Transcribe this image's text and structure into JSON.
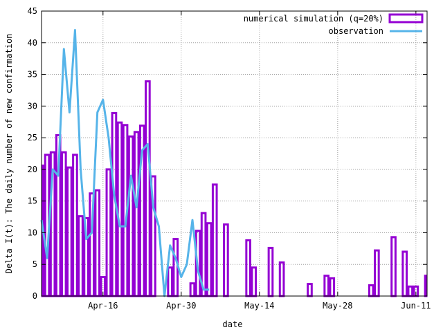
{
  "chart_data": {
    "type": "bar",
    "xlabel": "date",
    "ylabel": "Delta I(t): The daily number of new confirmation",
    "ylim": [
      0,
      45
    ],
    "y_ticks": [
      0,
      5,
      10,
      15,
      20,
      25,
      30,
      35,
      40,
      45
    ],
    "x_tick_labels": [
      "Apr-16",
      "Apr-30",
      "May-14",
      "May-28",
      "Jun-11"
    ],
    "x_tick_positions": [
      11,
      25,
      39,
      53,
      67
    ],
    "xlim": [
      0,
      69
    ],
    "grid": true,
    "legend_position": "top-right",
    "series": [
      {
        "name": "numerical simulation (q=20%)",
        "kind": "bar",
        "color": "#9400d3",
        "x": [
          0,
          1,
          2,
          3,
          4,
          5,
          6,
          7,
          8,
          9,
          10,
          11,
          12,
          13,
          14,
          15,
          16,
          17,
          18,
          19,
          20,
          21,
          22,
          23,
          24,
          25,
          26,
          27,
          28,
          29,
          30,
          31,
          32,
          33,
          34,
          35,
          36,
          37,
          38,
          39,
          40,
          41,
          42,
          43,
          44,
          45,
          46,
          47,
          48,
          49,
          50,
          51,
          52,
          53,
          54,
          55,
          56,
          57,
          58,
          59,
          60,
          61,
          62,
          63,
          64,
          65,
          66,
          67,
          68,
          69
        ],
        "values": [
          20.6,
          22.3,
          22.7,
          25.4,
          22.7,
          20.3,
          22.3,
          12.6,
          12.3,
          16.2,
          16.7,
          3.0,
          20.0,
          28.9,
          27.4,
          27.0,
          25.2,
          25.9,
          26.9,
          33.9,
          18.9,
          0,
          0,
          4.5,
          9.0,
          0,
          0,
          2.0,
          10.3,
          13.1,
          11.5,
          17.6,
          0,
          11.3,
          0,
          0,
          0,
          8.8,
          4.5,
          0,
          0,
          7.6,
          0,
          5.3,
          0,
          0,
          0,
          0,
          1.9,
          0,
          0,
          3.2,
          2.8,
          0,
          0,
          0,
          0,
          0,
          0,
          1.7,
          7.2,
          0,
          0,
          9.3,
          0,
          7.0,
          1.5,
          1.5,
          0,
          3.2
        ]
      },
      {
        "name": "observation",
        "kind": "line",
        "color": "#56b4e9",
        "x": [
          0,
          1,
          2,
          3,
          4,
          5,
          6,
          7,
          8,
          9,
          10,
          11,
          12,
          13,
          14,
          15,
          16,
          17,
          18,
          19,
          20,
          21,
          22,
          23,
          24,
          25,
          26,
          27,
          28,
          29,
          30
        ],
        "values": [
          12,
          6,
          20,
          19,
          39,
          29,
          42,
          20,
          9,
          10,
          29,
          31,
          25,
          16,
          11,
          11,
          19,
          14,
          23,
          24,
          14,
          11,
          0,
          8,
          6,
          3,
          5,
          12,
          4,
          1,
          1
        ]
      }
    ]
  }
}
